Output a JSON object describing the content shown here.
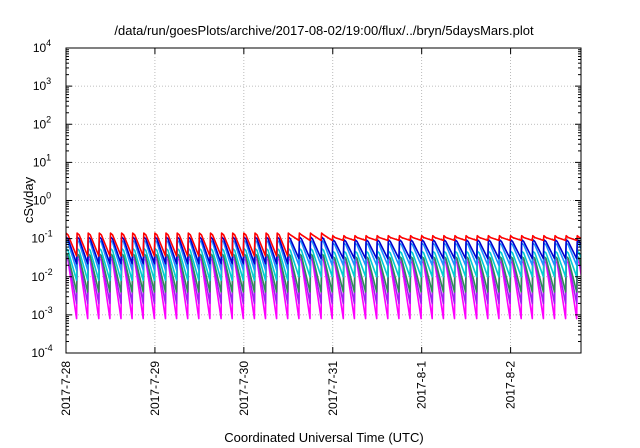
{
  "chart_data": {
    "type": "line",
    "title": "/data/run/goesPlots/archive/2017-08-02/19:00/flux/../bryn/5daysMars.plot",
    "xlabel": "Coordinated Universal Time (UTC)",
    "ylabel": "cSv/day",
    "y_scale": "log",
    "ylim": [
      0.0001,
      10000
    ],
    "y_ticks": [
      {
        "base": "10",
        "exp": "-4",
        "value": 0.0001
      },
      {
        "base": "10",
        "exp": "-3",
        "value": 0.001
      },
      {
        "base": "10",
        "exp": "-2",
        "value": 0.01
      },
      {
        "base": "10",
        "exp": "-1",
        "value": 0.1
      },
      {
        "base": "10",
        "exp": "0",
        "value": 1
      },
      {
        "base": "10",
        "exp": "1",
        "value": 10
      },
      {
        "base": "10",
        "exp": "2",
        "value": 100
      },
      {
        "base": "10",
        "exp": "3",
        "value": 1000
      },
      {
        "base": "10",
        "exp": "4",
        "value": 10000
      }
    ],
    "xlim": [
      "2017-07-28",
      "2017-08-02 19:00"
    ],
    "x_ticks": [
      "2017-7-28",
      "2017-7-29",
      "2017-7-30",
      "2017-7-31",
      "2017-8-1",
      "2017-8-2"
    ],
    "grid": true,
    "sawtooth_period_hours": 3,
    "series": [
      {
        "color": "#ff00ff",
        "peak": 0.03,
        "trough_early": 0.0008,
        "trough_late": 0.0008
      },
      {
        "color": "#a020f0",
        "peak": 0.035,
        "trough_early": 0.002,
        "trough_late": 0.002
      },
      {
        "color": "#2e8b57",
        "peak": 0.04,
        "trough_early": 0.004,
        "trough_late": 0.004
      },
      {
        "color": "#00ced1",
        "peak": 0.055,
        "trough_early": 0.008,
        "trough_late": 0.01
      },
      {
        "color": "#1e90ff",
        "peak": 0.09,
        "trough_early": 0.015,
        "trough_late": 0.02
      },
      {
        "color": "#0000cd",
        "peak": 0.11,
        "trough_early": 0.022,
        "trough_late": 0.03
      },
      {
        "color": "#ff0000",
        "peak": 0.14,
        "trough_early": 0.035,
        "trough_late": 0.09
      }
    ]
  }
}
